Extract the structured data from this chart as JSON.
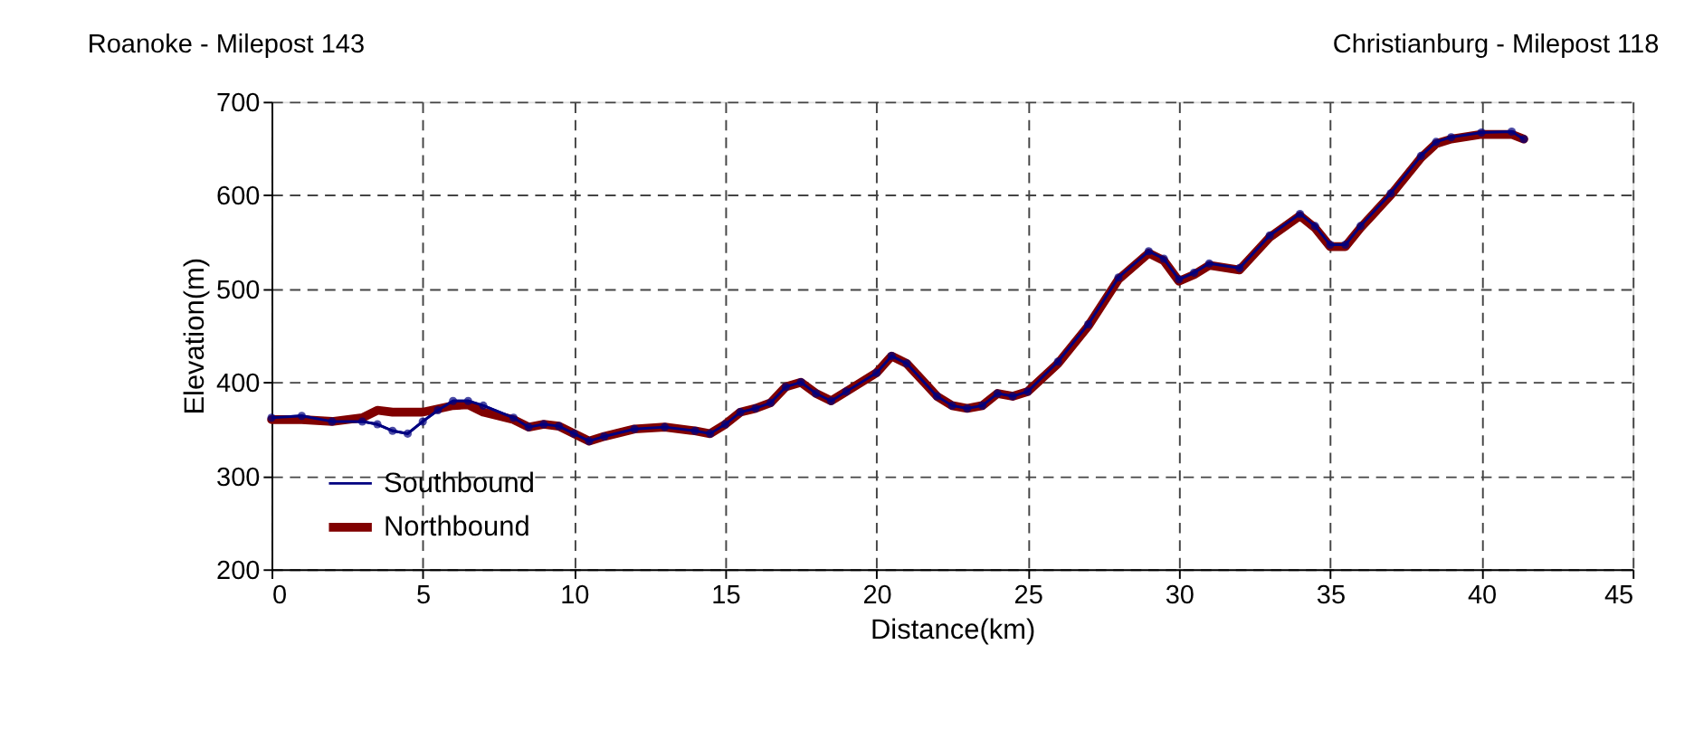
{
  "chart_data": {
    "type": "line",
    "xlabel": "Distance(km)",
    "ylabel": "Elevation(m)",
    "annotations": [
      "Roanoke - Milepost 143",
      "Christianburg - Milepost 118"
    ],
    "xlim": [
      0,
      45
    ],
    "xticks": [
      0,
      5,
      10,
      15,
      20,
      25,
      30,
      35,
      40,
      45
    ],
    "ylim": [
      200,
      700
    ],
    "yticks": [
      200,
      300,
      400,
      500,
      600,
      700
    ],
    "grid": true,
    "legend": "bottom left",
    "line_style": "solid",
    "series": [
      {
        "name": "Southbound",
        "color": "#000080",
        "marker": "circle",
        "x": [
          0,
          1,
          2,
          3,
          3.5,
          4,
          4.5,
          5,
          5.5,
          6,
          6.5,
          7,
          8,
          8.5,
          9,
          9.5,
          10,
          10.5,
          11,
          12,
          13,
          14,
          14.5,
          15,
          15.5,
          16,
          16.5,
          17,
          17.5,
          18,
          18.5,
          19,
          20,
          20.5,
          21,
          22,
          22.5,
          23,
          23.5,
          24,
          24.5,
          25,
          26,
          27,
          28,
          29,
          29.5,
          30,
          30.5,
          31,
          32,
          33,
          34,
          34.5,
          35,
          35.5,
          36,
          37,
          38,
          38.5,
          39,
          40,
          41,
          41.4
        ],
        "values": [
          362,
          364,
          358,
          358,
          355,
          348,
          345,
          358,
          370,
          380,
          380,
          375,
          362,
          352,
          355,
          353,
          345,
          337,
          342,
          350,
          352,
          348,
          345,
          355,
          368,
          372,
          378,
          395,
          400,
          388,
          380,
          390,
          410,
          428,
          420,
          385,
          375,
          372,
          375,
          388,
          385,
          390,
          422,
          462,
          512,
          540,
          532,
          510,
          517,
          527,
          522,
          557,
          580,
          567,
          547,
          547,
          567,
          602,
          642,
          657,
          662,
          667,
          668,
          660
        ]
      },
      {
        "name": "Northbound",
        "color": "#800000",
        "marker": "none",
        "x": [
          0,
          1,
          2,
          3,
          3.5,
          4,
          5,
          6,
          6.5,
          7,
          8,
          8.5,
          9,
          9.5,
          10,
          10.5,
          11,
          12,
          13,
          14,
          14.5,
          15,
          15.5,
          16,
          16.5,
          17,
          17.5,
          18,
          18.5,
          19,
          20,
          20.5,
          21,
          22,
          22.5,
          23,
          23.5,
          24,
          24.5,
          25,
          26,
          27,
          28,
          29,
          29.5,
          30,
          30.5,
          31,
          32,
          33,
          34,
          34.5,
          35,
          35.5,
          36,
          37,
          38,
          38.5,
          39,
          40,
          41,
          41.4
        ],
        "values": [
          360,
          360,
          358,
          362,
          370,
          368,
          368,
          375,
          376,
          368,
          360,
          352,
          355,
          353,
          345,
          337,
          342,
          350,
          352,
          348,
          345,
          355,
          368,
          372,
          378,
          395,
          400,
          388,
          380,
          390,
          410,
          428,
          420,
          385,
          375,
          372,
          375,
          388,
          385,
          390,
          420,
          460,
          510,
          538,
          530,
          508,
          515,
          525,
          520,
          555,
          578,
          565,
          545,
          545,
          565,
          600,
          640,
          655,
          660,
          665,
          665,
          660
        ]
      }
    ]
  }
}
